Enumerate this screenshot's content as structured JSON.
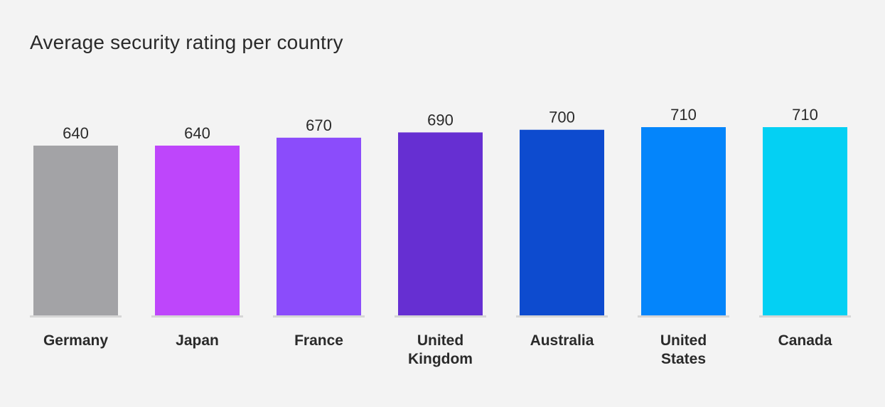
{
  "chart_data": {
    "type": "bar",
    "title": "Average security rating per country",
    "xlabel": "",
    "ylabel": "",
    "categories": [
      [
        "Germany"
      ],
      [
        "Japan"
      ],
      [
        "France"
      ],
      [
        "United",
        "Kingdom"
      ],
      [
        "Australia"
      ],
      [
        "United",
        "States"
      ],
      [
        "Canada"
      ]
    ],
    "values": [
      640,
      640,
      670,
      690,
      700,
      710,
      710
    ],
    "value_labels": [
      "640",
      "640",
      "670",
      "690",
      "700",
      "710",
      "710"
    ],
    "bar_colors": [
      "#a3a3a6",
      "#be46fb",
      "#8b4cfb",
      "#662fd2",
      "#0d4bcf",
      "#0485fb",
      "#04d0f3"
    ],
    "grid": false,
    "legend": "none"
  },
  "colors": {
    "background": "#f3f3f3",
    "baseline": "#d6d6d6",
    "text": "#2a2a2a"
  }
}
